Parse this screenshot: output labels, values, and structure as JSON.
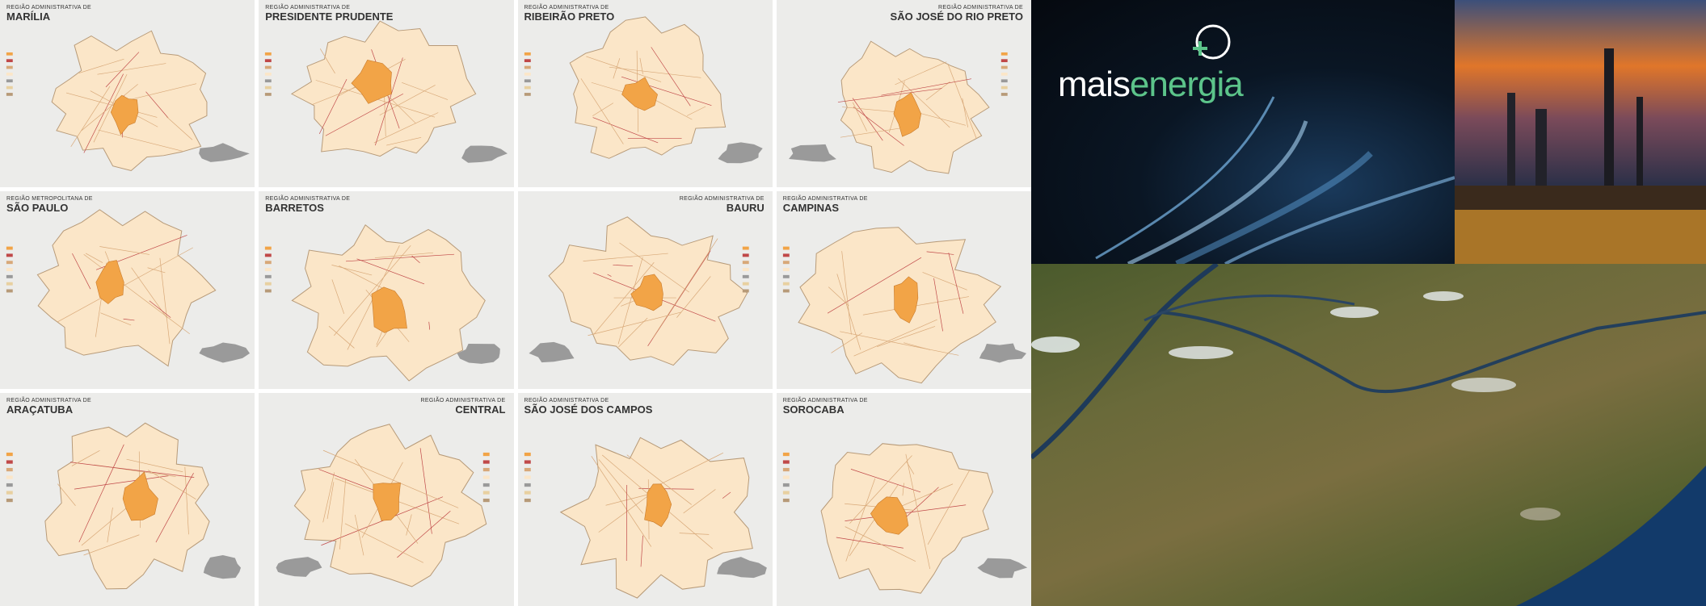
{
  "maps": [
    {
      "kicker": "REGIÃO ADMINISTRATIVA DE",
      "name": "MARÍLIA",
      "align": "left"
    },
    {
      "kicker": "REGIÃO ADMINISTRATIVA DE",
      "name": "PRESIDENTE PRUDENTE",
      "align": "left"
    },
    {
      "kicker": "REGIÃO ADMINISTRATIVA DE",
      "name": "RIBEIRÃO PRETO",
      "align": "left"
    },
    {
      "kicker": "REGIÃO ADMINISTRATIVA DE",
      "name": "SÃO JOSÉ DO RIO PRETO",
      "align": "right"
    },
    {
      "kicker": "REGIÃO METROPOLITANA DE",
      "name": "SÃO PAULO",
      "align": "left"
    },
    {
      "kicker": "REGIÃO ADMINISTRATIVA DE",
      "name": "BARRETOS",
      "align": "left"
    },
    {
      "kicker": "REGIÃO ADMINISTRATIVA DE",
      "name": "BAURU",
      "align": "right"
    },
    {
      "kicker": "REGIÃO ADMINISTRATIVA DE",
      "name": "CAMPINAS",
      "align": "left"
    },
    {
      "kicker": "REGIÃO ADMINISTRATIVA DE",
      "name": "ARAÇATUBA",
      "align": "left"
    },
    {
      "kicker": "REGIÃO ADMINISTRATIVA DE",
      "name": "CENTRAL",
      "align": "right"
    },
    {
      "kicker": "REGIÃO ADMINISTRATIVA DE",
      "name": "SÃO JOSÉ DOS CAMPOS",
      "align": "left"
    },
    {
      "kicker": "REGIÃO ADMINISTRATIVA DE",
      "name": "SOROCABA",
      "align": "left"
    }
  ],
  "logo": {
    "part1": "mais",
    "part2": "energia"
  }
}
